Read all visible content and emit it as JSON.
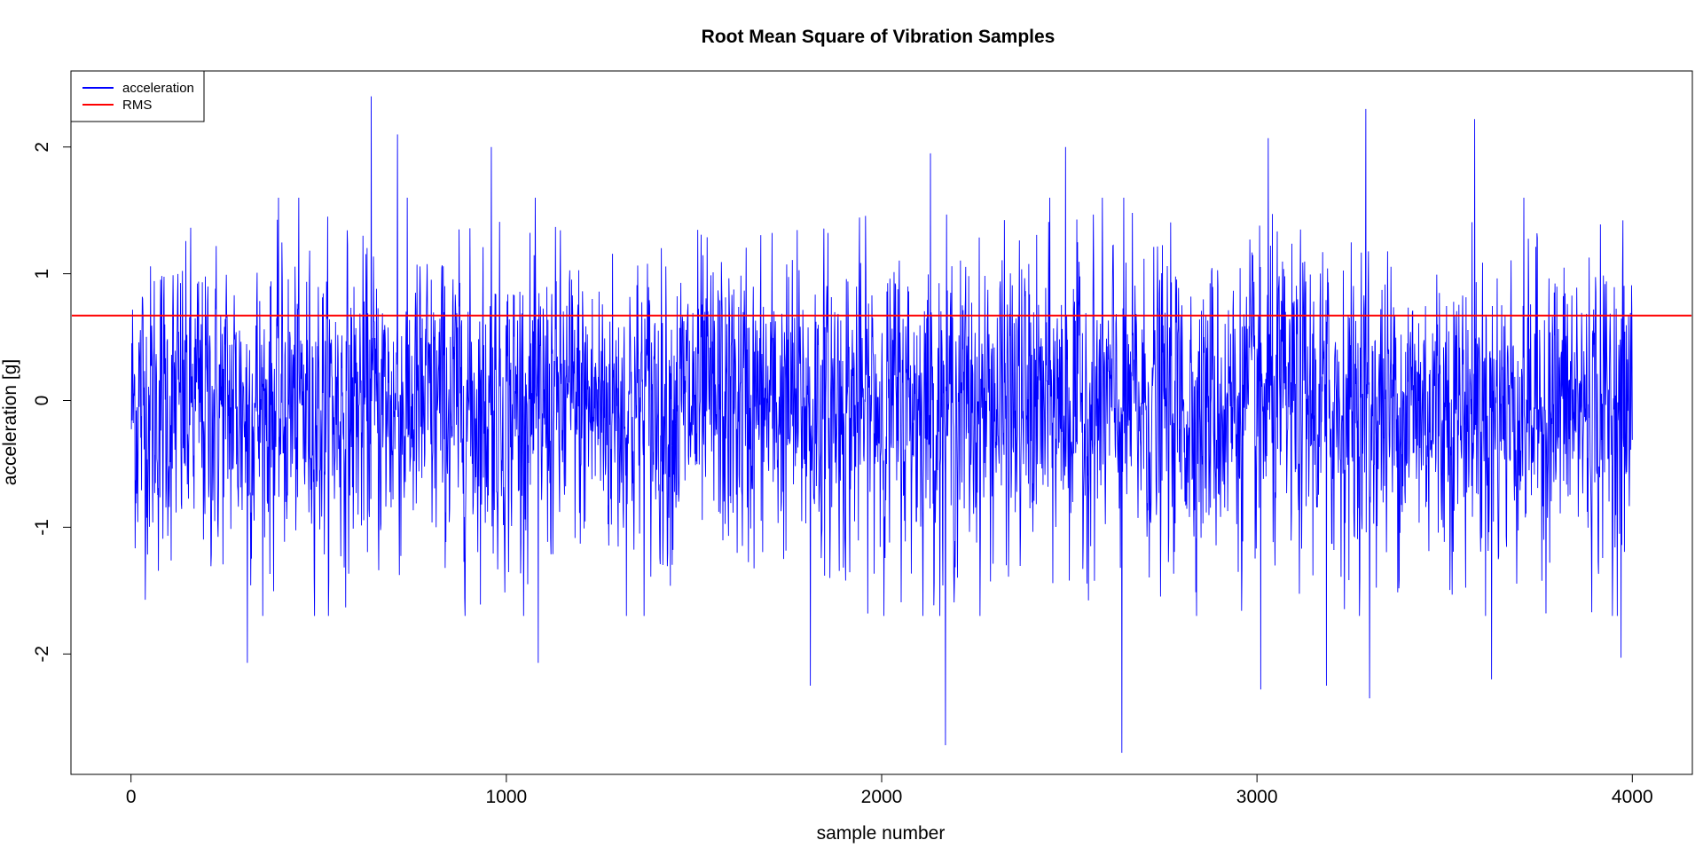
{
  "chart_data": {
    "type": "line",
    "title": "Root Mean Square of Vibration Samples",
    "xlabel": "sample number",
    "ylabel": "acceleration [g]",
    "xlim": [
      -160,
      4160
    ],
    "ylim": [
      -2.95,
      2.6
    ],
    "x_ticks": [
      0,
      1000,
      2000,
      3000,
      4000
    ],
    "x_tick_labels": [
      "0",
      "1000",
      "2000",
      "3000",
      "4000"
    ],
    "y_ticks": [
      -2,
      -1,
      0,
      1,
      2
    ],
    "y_tick_labels": [
      "-2",
      "-1",
      "0",
      "1",
      "2"
    ],
    "grid": false,
    "legend_position": "top-left",
    "legend": [
      {
        "name": "acceleration",
        "color": "#0000ff"
      },
      {
        "name": "RMS",
        "color": "#ff0000"
      }
    ],
    "series": [
      {
        "name": "acceleration",
        "color": "#0000ff",
        "n_samples": 4000,
        "x_start": 1,
        "x_end": 4000,
        "envelope_typical": [
          -1.5,
          1.5
        ],
        "peaks": [
          {
            "x": 640,
            "y": 2.4
          },
          {
            "x": 710,
            "y": 2.1
          },
          {
            "x": 960,
            "y": 2.0
          },
          {
            "x": 2130,
            "y": 1.95
          },
          {
            "x": 2490,
            "y": 2.0
          },
          {
            "x": 3030,
            "y": 2.07
          },
          {
            "x": 3290,
            "y": 2.3
          },
          {
            "x": 3580,
            "y": 2.22
          },
          {
            "x": 310,
            "y": -2.07
          },
          {
            "x": 1085,
            "y": -2.07
          },
          {
            "x": 1810,
            "y": -2.25
          },
          {
            "x": 2170,
            "y": -2.72
          },
          {
            "x": 2640,
            "y": -2.78
          },
          {
            "x": 3010,
            "y": -2.28
          },
          {
            "x": 3185,
            "y": -2.25
          },
          {
            "x": 3300,
            "y": -2.35
          },
          {
            "x": 3625,
            "y": -2.2
          },
          {
            "x": 3970,
            "y": -2.03
          }
        ]
      },
      {
        "name": "RMS",
        "color": "#ff0000",
        "y": 0.67
      }
    ]
  }
}
